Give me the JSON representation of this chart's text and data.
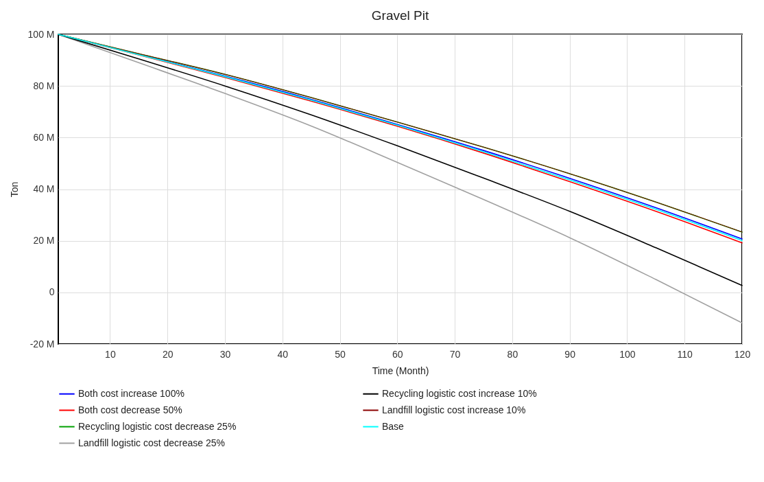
{
  "chart_data": {
    "type": "line",
    "title": "Gravel Pit",
    "xlabel": "Time (Month)",
    "ylabel": "Ton",
    "x": [
      1,
      15,
      30,
      45,
      60,
      75,
      90,
      105,
      120
    ],
    "xlim": [
      1,
      120
    ],
    "xticks": [
      10,
      20,
      30,
      40,
      50,
      60,
      70,
      80,
      90,
      100,
      110,
      120
    ],
    "ylim": [
      -20,
      100
    ],
    "yticks": [
      {
        "value": -20,
        "label": "-20 M"
      },
      {
        "value": 0,
        "label": "0"
      },
      {
        "value": 20,
        "label": "20 M"
      },
      {
        "value": 40,
        "label": "40 M"
      },
      {
        "value": 60,
        "label": "60 M"
      },
      {
        "value": 80,
        "label": "80 M"
      },
      {
        "value": 100,
        "label": "100 M"
      }
    ],
    "grid": true,
    "legend": "bottom",
    "marker": "none",
    "line_style": "solid",
    "series": [
      {
        "name": "Both cost increase 100%",
        "color": "#0000ff",
        "values": [
          100,
          92.2,
          83.8,
          74.8,
          65.1,
          55,
          44.2,
          32.8,
          20.7
        ]
      },
      {
        "name": "Both cost decrease 50%",
        "color": "#ff0000",
        "values": [
          100,
          92.0,
          83.3,
          74.1,
          64.4,
          54,
          42.9,
          31.4,
          19.2
        ]
      },
      {
        "name": "Recycling logistic cost decrease 25%",
        "color": "#00a000",
        "values": [
          100,
          92.5,
          84.5,
          75.5,
          66,
          56.3,
          46,
          35,
          23.4
        ]
      },
      {
        "name": "Landfill logistic cost decrease 25%",
        "color": "#a0a0a0",
        "values": [
          100,
          89,
          77.1,
          64.5,
          50.4,
          36,
          21.2,
          5,
          -11.8
        ]
      },
      {
        "name": "Recycling logistic cost increase 10%",
        "color": "#000000",
        "values": [
          100,
          90.5,
          80,
          68.8,
          56.8,
          44.3,
          31.4,
          17.3,
          2.7
        ]
      },
      {
        "name": "Landfill logistic cost increase 10%",
        "color": "#8b0000",
        "values": [
          100,
          92.5,
          84.5,
          75.5,
          66,
          56.3,
          46,
          35,
          23.4
        ]
      },
      {
        "name": "Base",
        "color": "#00ffff",
        "values": [
          100,
          92.1,
          83.6,
          74.5,
          64.8,
          54.5,
          43.6,
          32.2,
          20.1
        ]
      }
    ]
  }
}
